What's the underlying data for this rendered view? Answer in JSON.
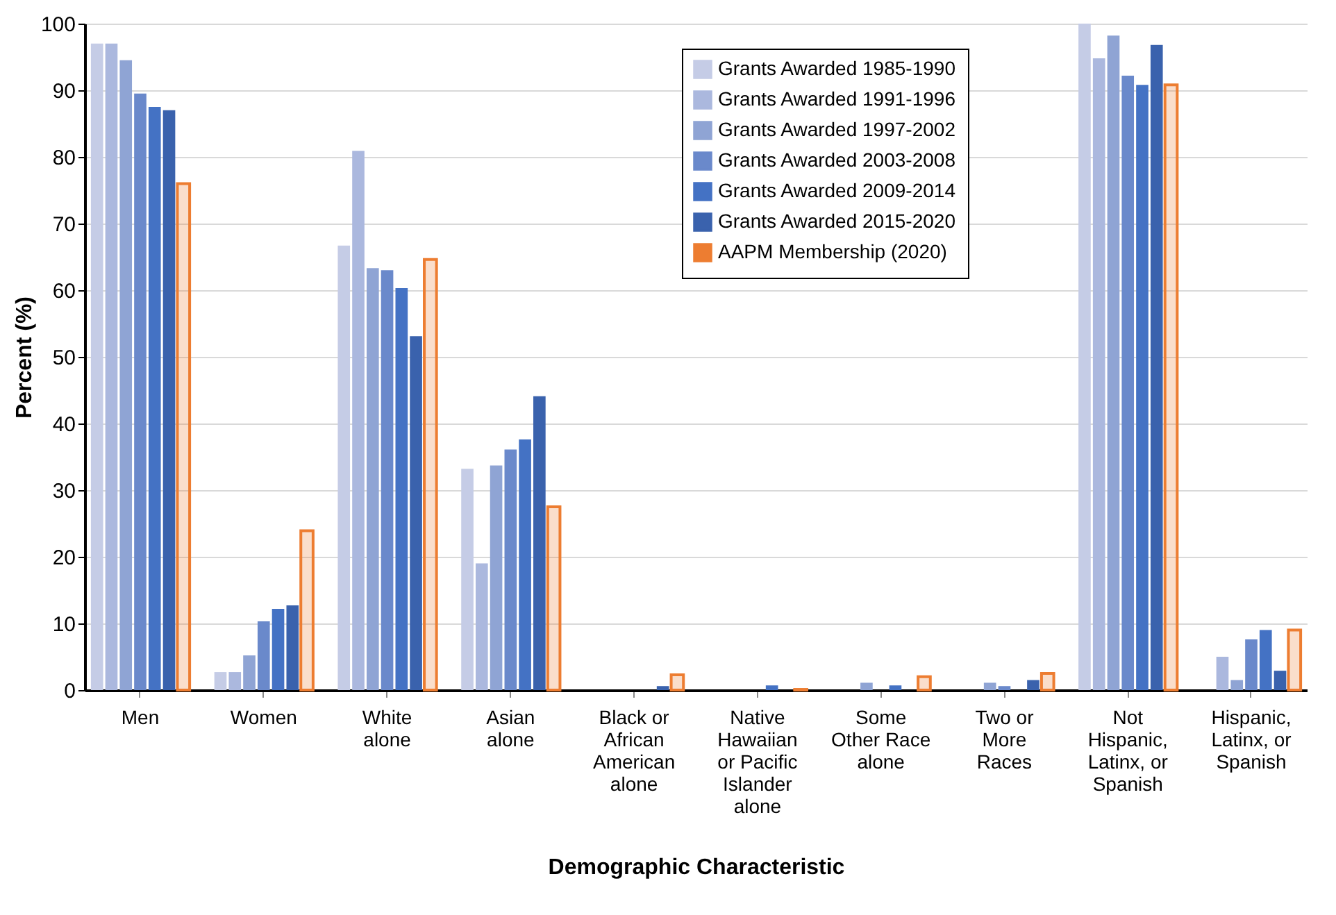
{
  "chart_data": {
    "type": "bar",
    "xlabel": "Demographic Characteristic",
    "ylabel": "Percent (%)",
    "categories": [
      "Men",
      "Women",
      "White\nalone",
      "Asian\nalone",
      "Black or\nAfrican\nAmerican\nalone",
      "Native\nHawaiian\nor Pacific\nIslander\nalone",
      "Some\nOther Race\nalone",
      "Two or\nMore\nRaces",
      "Not\nHispanic,\nLatinx, or\nSpanish",
      "Hispanic,\nLatinx, or\nSpanish"
    ],
    "series": [
      {
        "name": "Grants Awarded 1985-1990",
        "color": "#c5cce6",
        "values": [
          97,
          2.7,
          66.7,
          33.2,
          0,
          0,
          0,
          0,
          100,
          0
        ]
      },
      {
        "name": "Grants Awarded 1991-1996",
        "color": "#abb8de",
        "values": [
          97,
          2.7,
          80.9,
          19,
          0,
          0,
          0,
          0,
          94.8,
          5
        ]
      },
      {
        "name": "Grants Awarded 1997-2002",
        "color": "#8fa4d4",
        "values": [
          94.5,
          5.2,
          63.3,
          33.7,
          0,
          0,
          1.1,
          1.1,
          98.2,
          1.5
        ]
      },
      {
        "name": "Grants Awarded 2003-2008",
        "color": "#6a89cb",
        "values": [
          89.5,
          10.3,
          63,
          36.1,
          0,
          0,
          0,
          0.6,
          92.2,
          7.6
        ]
      },
      {
        "name": "Grants Awarded 2009-2014",
        "color": "#4472c4",
        "values": [
          87.5,
          12.2,
          60.3,
          37.6,
          0,
          0.7,
          0.7,
          0,
          90.8,
          9
        ]
      },
      {
        "name": "Grants Awarded 2015-2020",
        "color": "#3a62ad",
        "values": [
          87,
          12.7,
          53.1,
          44.1,
          0.6,
          0,
          0,
          1.5,
          96.8,
          2.9
        ]
      },
      {
        "name": "AAPM Membership (2020)",
        "color": "#ed7d31",
        "values": [
          76,
          23.9,
          64.6,
          27.5,
          2.3,
          0.1,
          2,
          2.5,
          90.8,
          9
        ]
      }
    ],
    "ylim": [
      0,
      100
    ],
    "yticks": [
      0,
      10,
      20,
      30,
      40,
      50,
      60,
      70,
      80,
      90,
      100
    ],
    "grid": "y",
    "legend": "top right"
  }
}
